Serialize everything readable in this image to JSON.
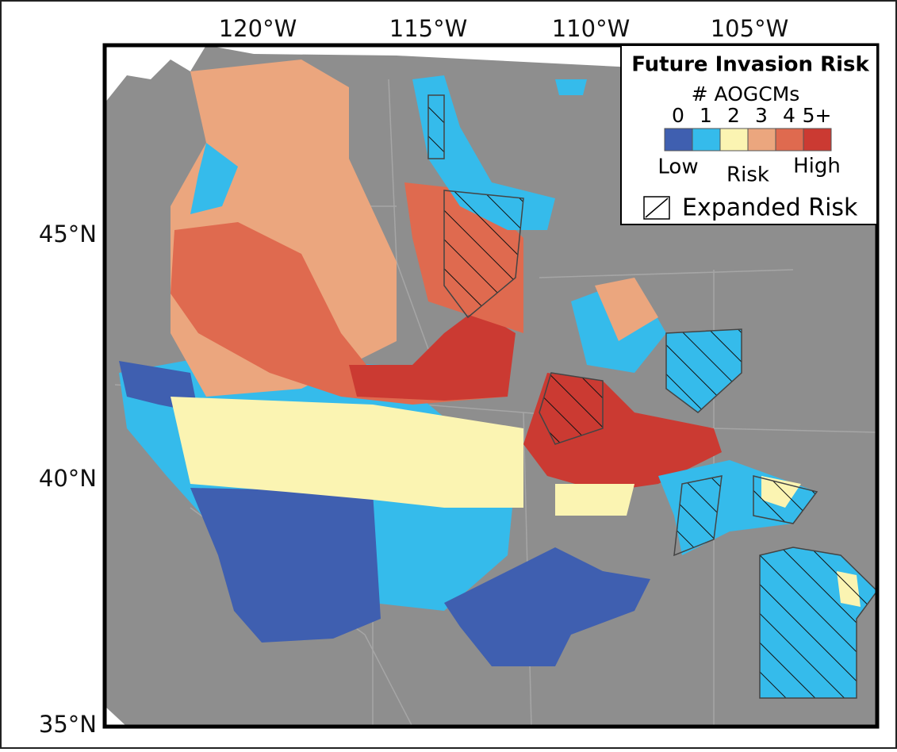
{
  "map": {
    "x_labels": [
      "120°W",
      "115°W",
      "110°W",
      "105°W"
    ],
    "y_labels": [
      "45°N",
      "40°N",
      "35°N"
    ]
  },
  "legend": {
    "title": "Future Invasion Risk",
    "subtitle": "# AOGCMs",
    "levels": [
      {
        "label": "0",
        "color": "#3f5fb0"
      },
      {
        "label": "1",
        "color": "#35bbeb"
      },
      {
        "label": "2",
        "color": "#fbf4b2"
      },
      {
        "label": "3",
        "color": "#eba67e"
      },
      {
        "label": "4",
        "color": "#df6a4f"
      },
      {
        "label": "5+",
        "color": "#cb3a32"
      }
    ],
    "scale_labels": [
      "Low",
      "Risk",
      "High"
    ],
    "hatch_label": "Expanded Risk"
  }
}
